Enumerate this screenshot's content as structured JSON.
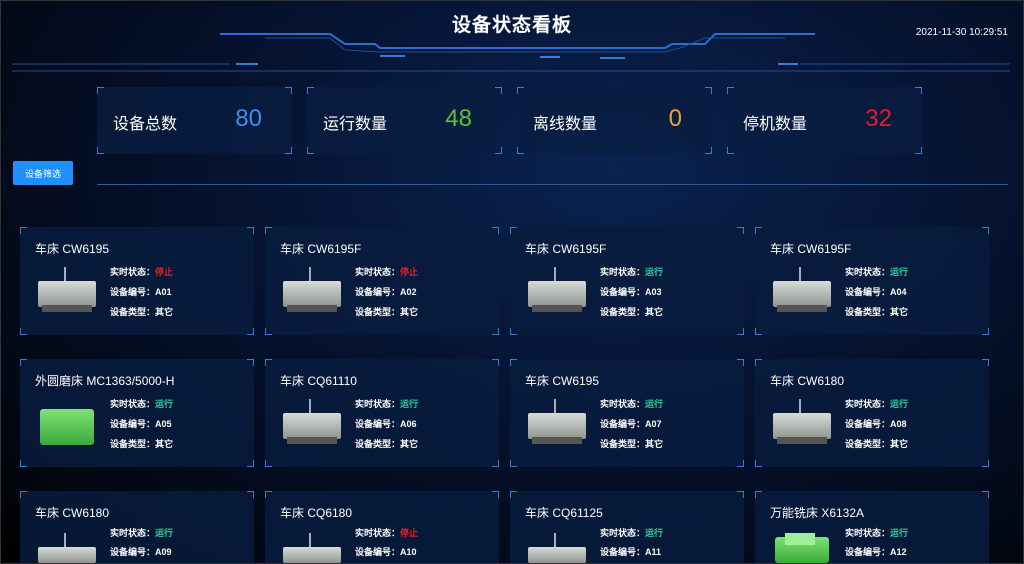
{
  "header": {
    "title": "设备状态看板",
    "datetime": "2021-11-30 10:29:51"
  },
  "stats": [
    {
      "label": "设备总数",
      "value": "80",
      "color": "#3d8ef0"
    },
    {
      "label": "运行数量",
      "value": "48",
      "color": "#5cc234"
    },
    {
      "label": "离线数量",
      "value": "0",
      "color": "#f0a030"
    },
    {
      "label": "停机数量",
      "value": "32",
      "color": "#e02020"
    }
  ],
  "filter_button": "设备筛选",
  "labels": {
    "status": "实时状态：",
    "code": "设备编号：",
    "type": "设备类型："
  },
  "devices": [
    {
      "name": "车床 CW6195",
      "status": "停止",
      "code": "A01",
      "type": "其它",
      "image": "lathe"
    },
    {
      "name": "车床 CW6195F",
      "status": "停止",
      "code": "A02",
      "type": "其它",
      "image": "lathe"
    },
    {
      "name": "车床 CW6195F",
      "status": "运行",
      "code": "A03",
      "type": "其它",
      "image": "lathe"
    },
    {
      "name": "车床 CW6195F",
      "status": "运行",
      "code": "A04",
      "type": "其它",
      "image": "lathe"
    },
    {
      "name": "外圆磨床 MC1363/5000-H",
      "status": "运行",
      "code": "A05",
      "type": "其它",
      "image": "grinder"
    },
    {
      "name": "车床 CQ61110",
      "status": "运行",
      "code": "A06",
      "type": "其它",
      "image": "lathe"
    },
    {
      "name": "车床 CW6195",
      "status": "运行",
      "code": "A07",
      "type": "其它",
      "image": "lathe"
    },
    {
      "name": "车床 CW6180",
      "status": "运行",
      "code": "A08",
      "type": "其它",
      "image": "lathe"
    },
    {
      "name": "车床 CW6180",
      "status": "运行",
      "code": "A09",
      "image": "lathe"
    },
    {
      "name": "车床 CQ6180",
      "status": "停止",
      "code": "A10",
      "image": "lathe"
    },
    {
      "name": "车床 CQ61125",
      "status": "运行",
      "code": "A11",
      "image": "lathe"
    },
    {
      "name": "万能铣床 X6132A",
      "status": "运行",
      "code": "A12",
      "image": "mill"
    }
  ]
}
